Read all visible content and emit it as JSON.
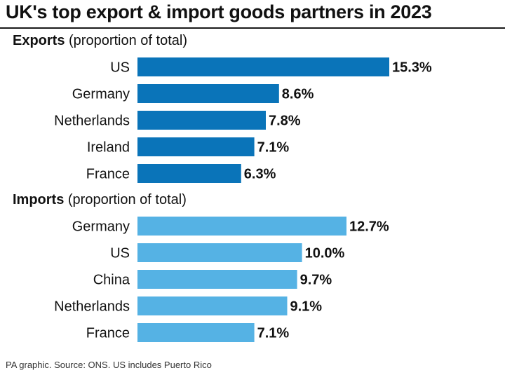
{
  "title": "UK's top export & import goods partners in 2023",
  "footer": "PA graphic. Source: ONS. US includes Puerto Rico",
  "colors": {
    "exports": "#0a74b9",
    "imports": "#55b2e4"
  },
  "chart_data": [
    {
      "type": "bar",
      "orientation": "horizontal",
      "heading_bold": "Exports",
      "heading_rest": " (proportion of total)",
      "categories": [
        "US",
        "Germany",
        "Netherlands",
        "Ireland",
        "France"
      ],
      "values": [
        15.3,
        8.6,
        7.8,
        7.1,
        6.3
      ],
      "value_labels": [
        "15.3%",
        "8.6%",
        "7.8%",
        "7.1%",
        "6.3%"
      ],
      "unit": "%"
    },
    {
      "type": "bar",
      "orientation": "horizontal",
      "heading_bold": "Imports",
      "heading_rest": " (proportion of total)",
      "categories": [
        "Germany",
        "US",
        "China",
        "Netherlands",
        "France"
      ],
      "values": [
        12.7,
        10.0,
        9.7,
        9.1,
        7.1
      ],
      "value_labels": [
        "12.7%",
        "10.0%",
        "9.7%",
        "9.1%",
        "7.1%"
      ],
      "unit": "%"
    }
  ]
}
